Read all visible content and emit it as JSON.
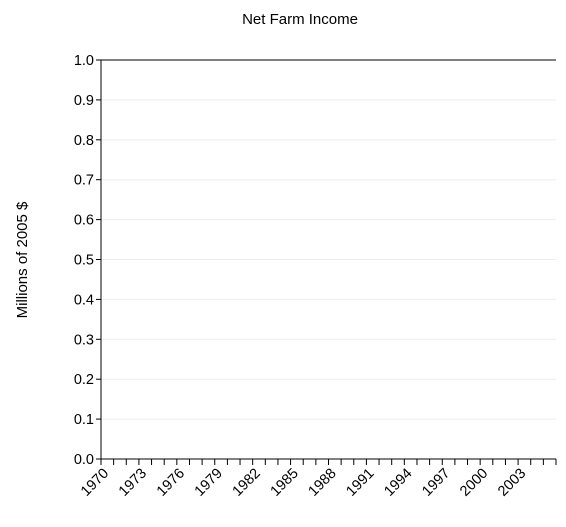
{
  "chart_data": {
    "type": "line",
    "title": "Net Farm Income",
    "xlabel": "",
    "ylabel": "Millions of 2005 $",
    "ylim": [
      0,
      1
    ],
    "y_ticks": [
      "0.0",
      "0.1",
      "0.2",
      "0.3",
      "0.4",
      "0.5",
      "0.6",
      "0.7",
      "0.8",
      "0.9",
      "1.0"
    ],
    "x": [
      1970,
      1971,
      1972,
      1973,
      1974,
      1975,
      1976,
      1977,
      1978,
      1979,
      1980,
      1981,
      1982,
      1983,
      1984,
      1985,
      1986,
      1987,
      1988,
      1989,
      1990,
      1991,
      1992,
      1993,
      1994,
      1995,
      1996,
      1997,
      1998,
      1999,
      2000,
      2001,
      2002,
      2003,
      2004,
      2005
    ],
    "x_tick_labels": [
      "1970",
      "1973",
      "1976",
      "1979",
      "1982",
      "1985",
      "1988",
      "1991",
      "1994",
      "1997",
      "2000",
      "2003"
    ],
    "series": [],
    "grid": true,
    "legend": "none"
  }
}
